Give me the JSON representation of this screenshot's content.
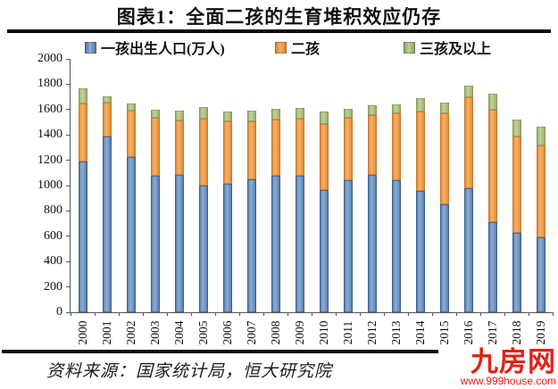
{
  "title": "图表1：全面二孩的生育堆积效应仍存",
  "source_note": "资料来源：国家统计局，恒大研究院",
  "watermark": {
    "name": "九房网",
    "url_text": "www.999house.com",
    "color": "#e32118"
  },
  "colors": {
    "first_child": "#6b91c1",
    "second_child": "#f19a4d",
    "third_child_plus": "#a9bd85",
    "rule": "#0a0a0a"
  },
  "chart_data": {
    "type": "bar",
    "stacked": true,
    "title": "图表1：全面二孩的生育堆积效应仍存",
    "xlabel": "",
    "ylabel": "",
    "unit": "万人",
    "ylim": [
      0,
      2000
    ],
    "y_ticks": [
      0,
      200,
      400,
      600,
      800,
      1000,
      1200,
      1400,
      1600,
      1800,
      2000
    ],
    "grid": false,
    "legend_position": "top",
    "categories": [
      "2000",
      "2001",
      "2002",
      "2003",
      "2004",
      "2005",
      "2006",
      "2007",
      "2008",
      "2009",
      "2010",
      "2011",
      "2012",
      "2013",
      "2014",
      "2015",
      "2016",
      "2017",
      "2018",
      "2019"
    ],
    "series": [
      {
        "name": "一孩出生人口(万人)",
        "color": "#6b91c1",
        "values": [
          1190,
          1390,
          1225,
          1080,
          1085,
          1000,
          1015,
          1050,
          1080,
          1075,
          965,
          1040,
          1082,
          1040,
          955,
          850,
          981,
          713,
          629,
          593
        ]
      },
      {
        "name": "二孩",
        "color": "#f19a4d",
        "values": [
          461,
          262,
          367,
          454,
          428,
          527,
          490,
          460,
          443,
          450,
          518,
          494,
          473,
          530,
          632,
          720,
          715,
          883,
          760,
          725
        ]
      },
      {
        "name": "三孩及以上",
        "color": "#a9bd85",
        "values": [
          120,
          50,
          55,
          65,
          80,
          90,
          80,
          85,
          85,
          90,
          105,
          70,
          80,
          70,
          100,
          85,
          90,
          127,
          134,
          147
        ]
      }
    ]
  }
}
